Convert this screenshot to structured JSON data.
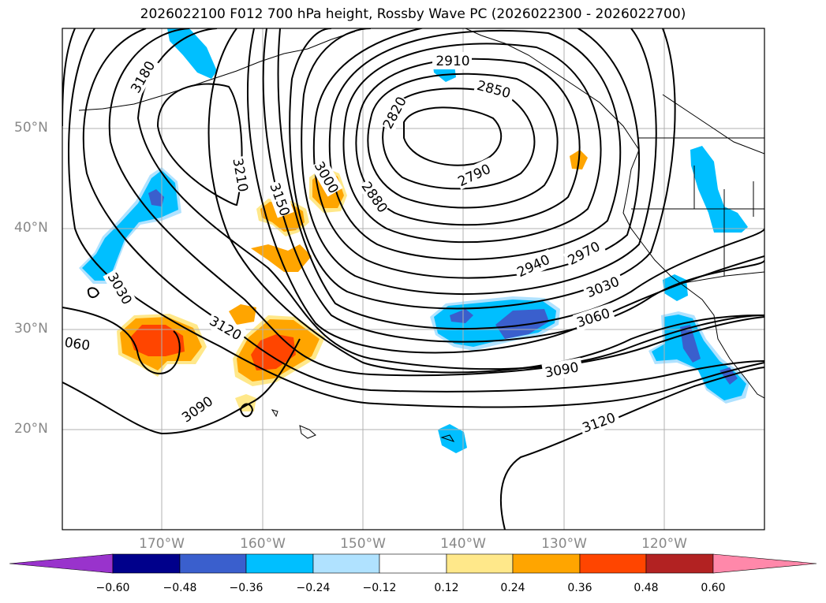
{
  "title": "2026022100 F012 700 hPa height, Rossby Wave PC (2026022300 - 2026022700)",
  "lat_labels": [
    "50°N",
    "40°N",
    "30°N",
    "20°N"
  ],
  "lon_labels": [
    "170°W",
    "160°W",
    "150°W",
    "140°W",
    "130°W",
    "120°W"
  ],
  "colorbar": {
    "ticks": [
      "−0.60",
      "−0.48",
      "−0.36",
      "−0.24",
      "−0.12",
      "0.12",
      "0.24",
      "0.36",
      "0.48",
      "0.60"
    ],
    "colors": [
      "#9933cc",
      "#00008b",
      "#3a5fcd",
      "#00bfff",
      "#b0e2ff",
      "#ffffff",
      "#ffe88a",
      "#ffa500",
      "#ff4500",
      "#b22222",
      "#ff88aa"
    ]
  },
  "contour_labels": [
    "3180",
    "3210",
    "3150",
    "3000",
    "2880",
    "2820",
    "2910",
    "2850",
    "2790",
    "2940",
    "2970",
    "3030",
    "3060",
    "3090",
    "3120",
    "3030",
    "060",
    "3120",
    "3090"
  ]
}
